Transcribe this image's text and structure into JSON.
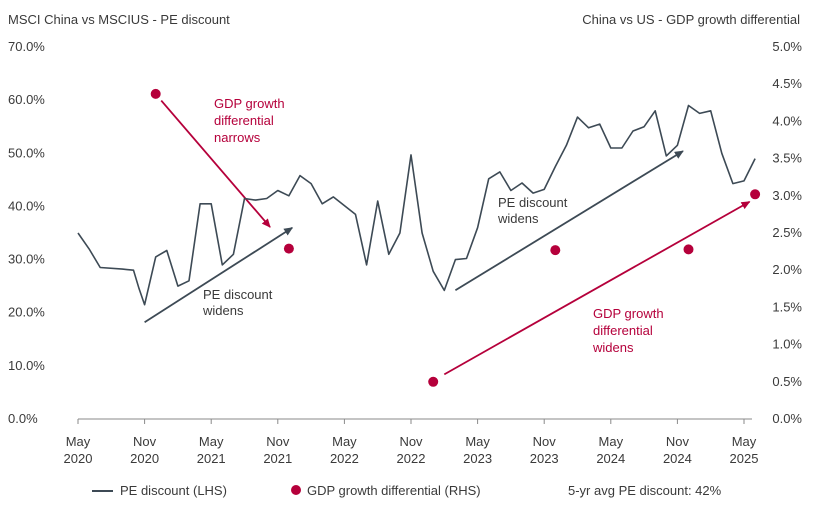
{
  "chart_data": {
    "type": "line",
    "title_left": "MSCI China vs MSCIUS - PE discount",
    "title_right": "China vs US - GDP growth differential",
    "x_ticks": [
      {
        "m": 0,
        "line1": "May",
        "line2": "2020"
      },
      {
        "m": 6,
        "line1": "Nov",
        "line2": "2020"
      },
      {
        "m": 12,
        "line1": "May",
        "line2": "2021"
      },
      {
        "m": 18,
        "line1": "Nov",
        "line2": "2021"
      },
      {
        "m": 24,
        "line1": "May",
        "line2": "2022"
      },
      {
        "m": 30,
        "line1": "Nov",
        "line2": "2022"
      },
      {
        "m": 36,
        "line1": "May",
        "line2": "2023"
      },
      {
        "m": 42,
        "line1": "Nov",
        "line2": "2023"
      },
      {
        "m": 48,
        "line1": "May",
        "line2": "2024"
      },
      {
        "m": 54,
        "line1": "Nov",
        "line2": "2024"
      },
      {
        "m": 60,
        "line1": "May",
        "line2": "2025"
      }
    ],
    "x_range": [
      0,
      60
    ],
    "y_left": {
      "min": 0,
      "max": 70,
      "step": 10,
      "ticks": [
        "0.0%",
        "10.0%",
        "20.0%",
        "30.0%",
        "40.0%",
        "50.0%",
        "60.0%",
        "70.0%"
      ]
    },
    "y_right": {
      "min": 0,
      "max": 5,
      "step": 0.5,
      "ticks": [
        "0.0%",
        "0.5%",
        "1.0%",
        "1.5%",
        "2.0%",
        "2.5%",
        "3.0%",
        "3.5%",
        "4.0%",
        "4.5%",
        "5.0%"
      ]
    },
    "series": [
      {
        "name": "PE discount (LHS)",
        "axis": "left",
        "color": "#3d4a55",
        "points": [
          [
            0,
            35.0
          ],
          [
            1,
            32.0
          ],
          [
            2,
            28.5
          ],
          [
            4,
            28.2
          ],
          [
            5,
            28.0
          ],
          [
            5.5,
            24.5
          ],
          [
            6,
            21.5
          ],
          [
            7,
            30.5
          ],
          [
            8,
            31.7
          ],
          [
            9,
            25.0
          ],
          [
            10,
            26.0
          ],
          [
            11,
            40.5
          ],
          [
            12,
            40.5
          ],
          [
            13,
            29.0
          ],
          [
            14,
            31.0
          ],
          [
            15,
            41.5
          ],
          [
            16,
            41.2
          ],
          [
            17,
            41.5
          ],
          [
            18,
            43.0
          ],
          [
            19,
            42.0
          ],
          [
            20,
            45.8
          ],
          [
            21,
            44.3
          ],
          [
            22,
            40.5
          ],
          [
            23,
            41.8
          ],
          [
            25,
            38.5
          ],
          [
            26,
            29.0
          ],
          [
            27,
            41.0
          ],
          [
            28,
            31.0
          ],
          [
            29,
            35.0
          ],
          [
            30,
            49.7
          ],
          [
            31,
            35.0
          ],
          [
            32,
            27.8
          ],
          [
            33,
            24.2
          ],
          [
            34,
            30.0
          ],
          [
            35,
            30.2
          ],
          [
            36,
            36.0
          ],
          [
            37,
            45.2
          ],
          [
            38,
            46.5
          ],
          [
            39,
            43.0
          ],
          [
            40,
            44.4
          ],
          [
            41,
            42.5
          ],
          [
            42,
            43.2
          ],
          [
            43,
            47.5
          ],
          [
            44,
            51.5
          ],
          [
            45,
            56.8
          ],
          [
            46,
            54.8
          ],
          [
            47,
            55.5
          ],
          [
            48,
            51.0
          ],
          [
            49,
            51.0
          ],
          [
            50,
            54.2
          ],
          [
            51,
            55.0
          ],
          [
            52,
            58.0
          ],
          [
            53,
            49.5
          ],
          [
            54,
            51.5
          ],
          [
            55,
            59.0
          ],
          [
            56,
            57.5
          ],
          [
            57,
            58.0
          ],
          [
            58,
            50.0
          ],
          [
            59,
            44.3
          ],
          [
            60,
            44.8
          ],
          [
            61,
            49.0
          ]
        ]
      },
      {
        "name": "GDP growth differential (RHS)",
        "axis": "right",
        "color": "#b5003b",
        "points": [
          [
            7,
            4.37
          ],
          [
            19,
            2.29
          ],
          [
            32,
            0.5
          ],
          [
            43,
            2.27
          ],
          [
            55,
            2.28
          ],
          [
            61,
            3.02
          ]
        ]
      }
    ],
    "annotations": [
      {
        "lines": [
          "GDP growth",
          "differential",
          "narrows"
        ],
        "color": "red"
      },
      {
        "lines": [
          "PE discount",
          "widens"
        ],
        "color": "gray"
      },
      {
        "lines": [
          "PE discount",
          "widens"
        ],
        "color": "gray"
      },
      {
        "lines": [
          "GDP growth",
          "differential",
          "widens"
        ],
        "color": "red"
      }
    ],
    "arrows": [
      {
        "from": [
          7.5,
          4.28
        ],
        "to": [
          17.3,
          2.58
        ],
        "axis": "right",
        "color": "red"
      },
      {
        "from": [
          6,
          1.3
        ],
        "to": [
          19.3,
          2.57
        ],
        "axis": "right",
        "color": "gray"
      },
      {
        "from": [
          34,
          1.73
        ],
        "to": [
          54.5,
          3.6
        ],
        "axis": "right",
        "color": "gray"
      },
      {
        "from": [
          33,
          0.6
        ],
        "to": [
          60.5,
          2.92
        ],
        "axis": "right",
        "color": "red"
      }
    ],
    "legend": {
      "items": [
        "PE discount (LHS)",
        "GDP growth differential (RHS)"
      ],
      "note": "5-yr avg PE discount: 42%"
    },
    "colors": {
      "line": "#3d4a55",
      "accent": "#b5003b",
      "axis": "#8a8a8a",
      "text": "#3a3a3a"
    }
  }
}
